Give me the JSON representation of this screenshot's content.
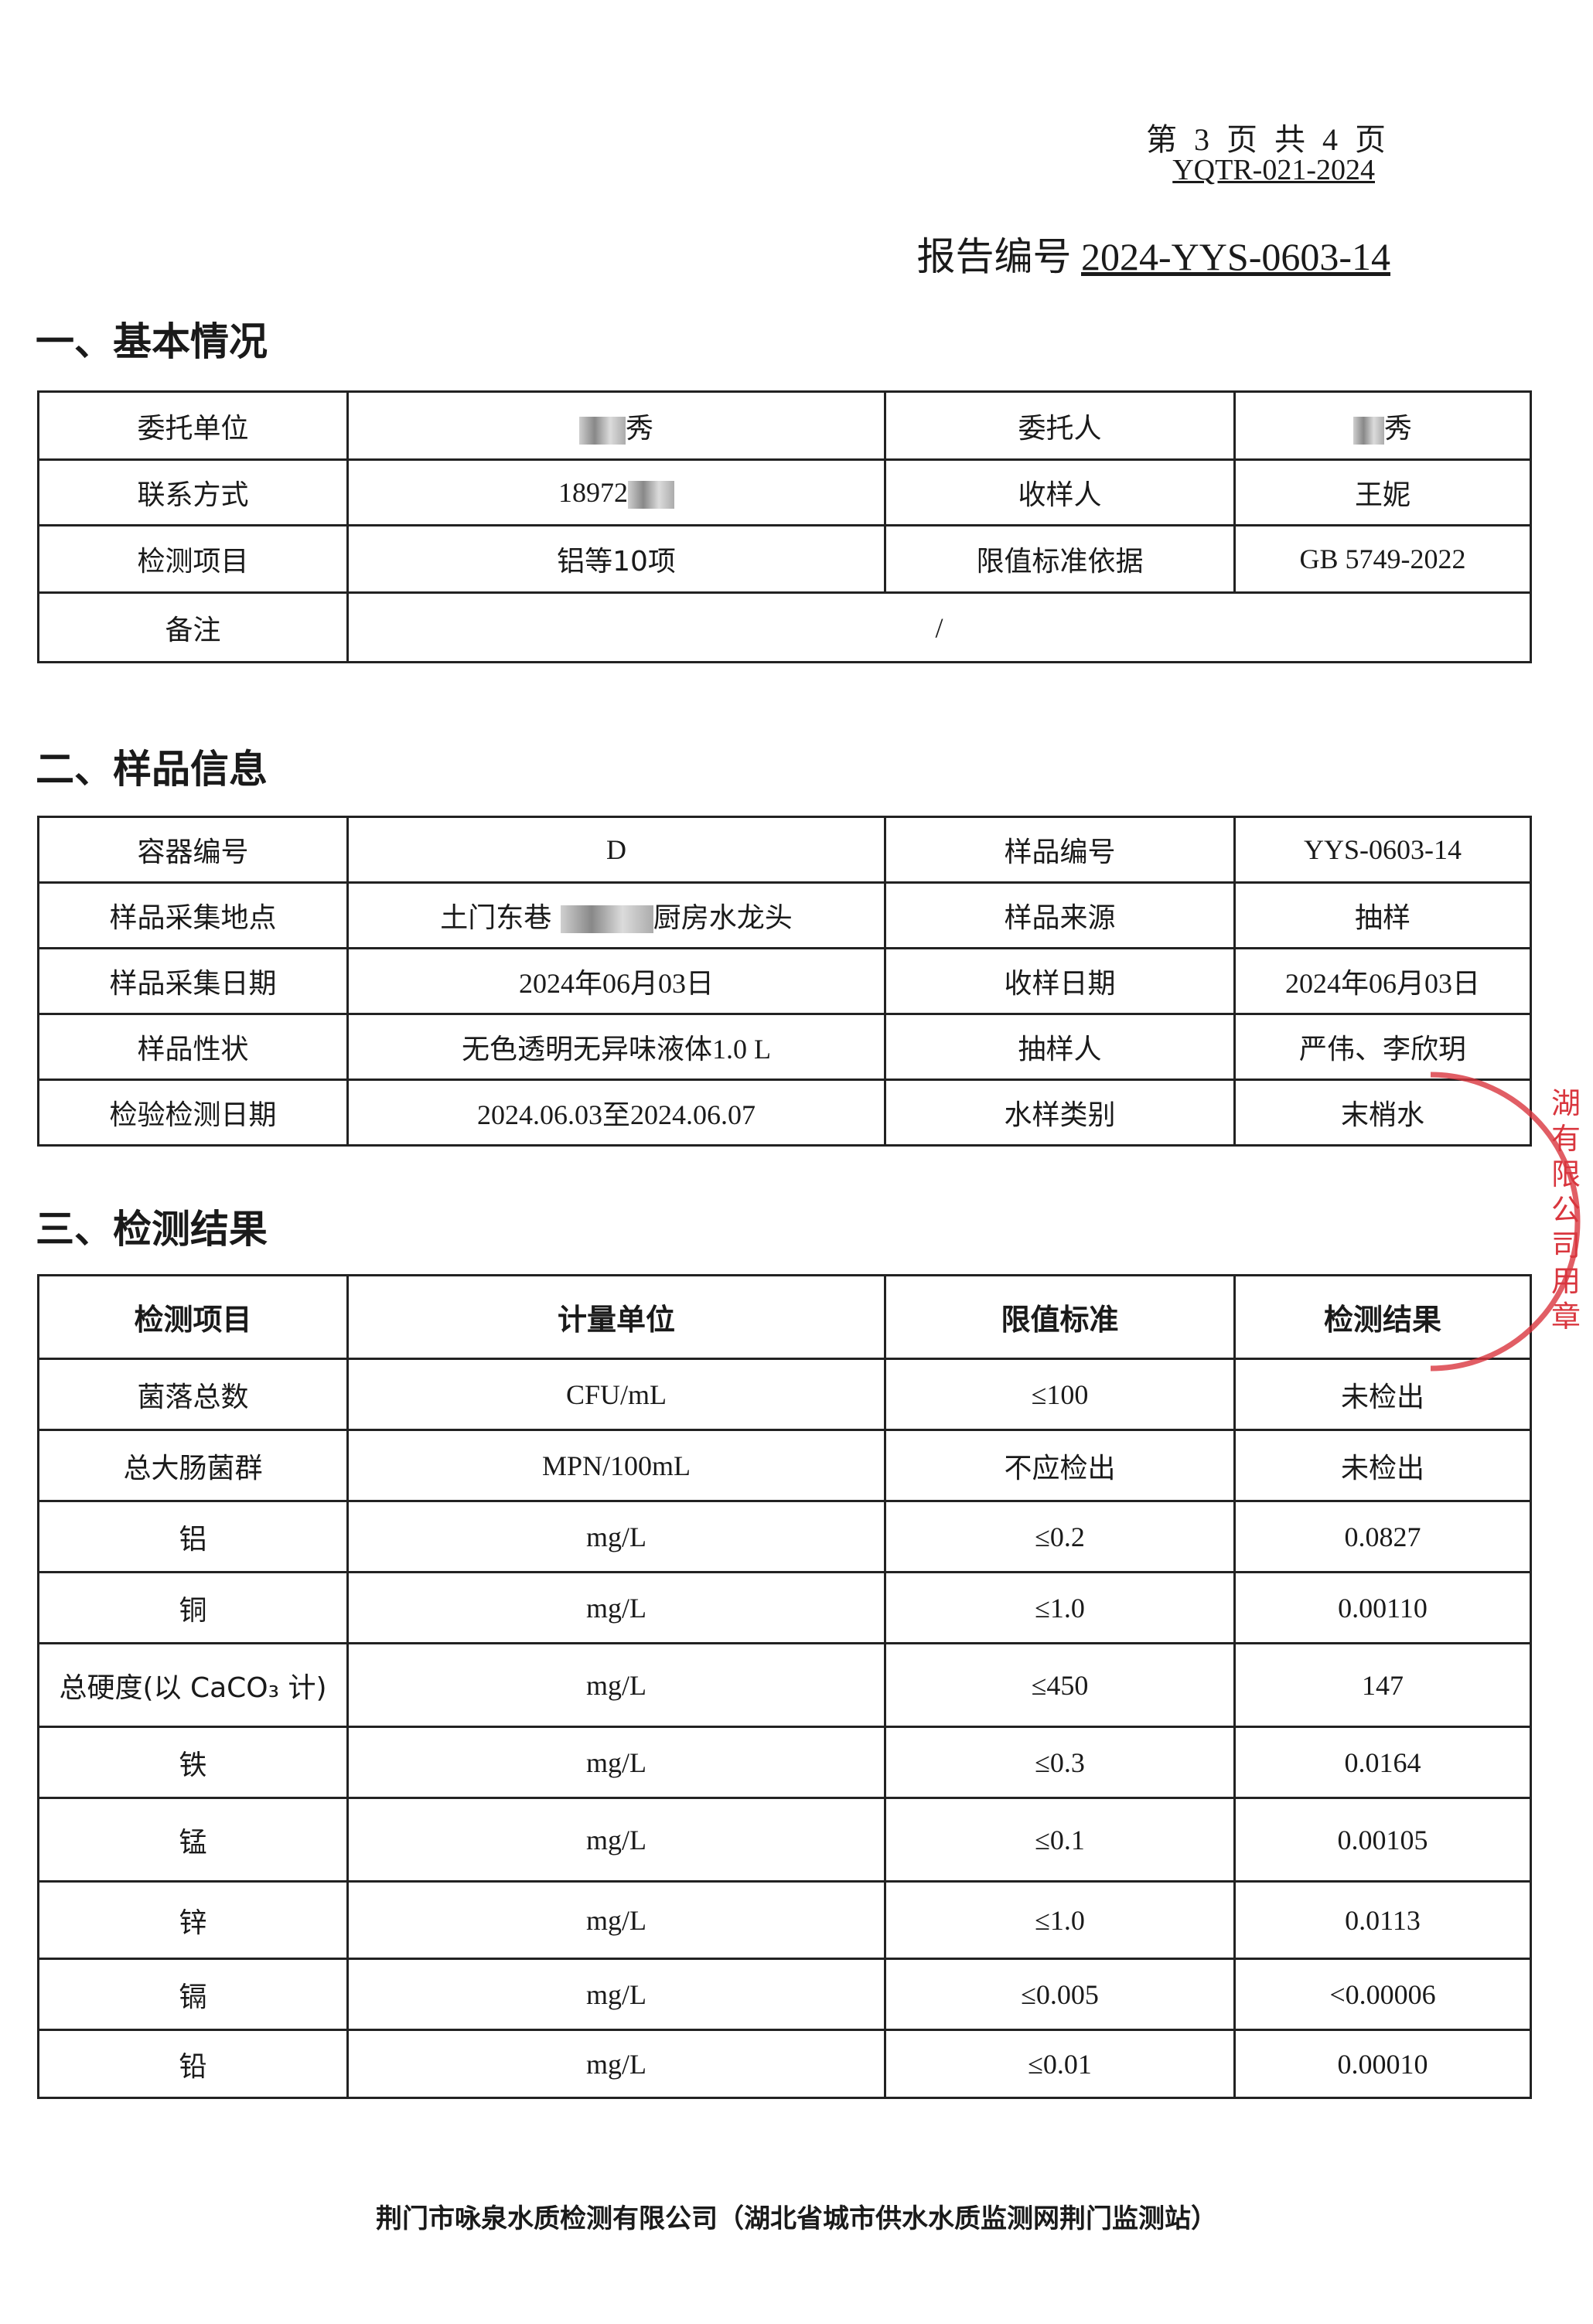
{
  "header": {
    "page_info": "第 3 页 共 4 页",
    "form_code": "YQTR-021-2024",
    "report_no_label": "报告编号",
    "report_no": "2024-YYS-0603-14"
  },
  "sections": {
    "basic": "一、基本情况",
    "sample": "二、样品信息",
    "results": "三、检测结果"
  },
  "basic_info": {
    "client_unit_label": "委托单位",
    "client_unit": "秀",
    "client_label": "委托人",
    "client": "秀",
    "contact_label": "联系方式",
    "contact": "18972",
    "receiver_label": "收样人",
    "receiver": "王妮",
    "items_label": "检测项目",
    "items": "铝等10项",
    "standard_label": "限值标准依据",
    "standard": "GB 5749-2022",
    "remark_label": "备注",
    "remark": "/"
  },
  "sample_info": {
    "container_label": "容器编号",
    "container": "D",
    "sample_no_label": "样品编号",
    "sample_no": "YYS-0603-14",
    "location_label": "样品采集地点",
    "location_prefix": "土门东巷",
    "location_suffix": "厨房水龙头",
    "source_label": "样品来源",
    "source": "抽样",
    "collect_date_label": "样品采集日期",
    "collect_date": "2024年06月03日",
    "receive_date_label": "收样日期",
    "receive_date": "2024年06月03日",
    "appearance_label": "样品性状",
    "appearance": "无色透明无异味液体1.0 L",
    "sampler_label": "抽样人",
    "sampler": "严伟、李欣玥",
    "test_date_label": "检验检测日期",
    "test_date": "2024.06.03至2024.06.07",
    "water_type_label": "水样类别",
    "water_type": "末梢水"
  },
  "results": {
    "headers": [
      "检测项目",
      "计量单位",
      "限值标准",
      "检测结果"
    ],
    "rows": [
      [
        "菌落总数",
        "CFU/mL",
        "≤100",
        "未检出"
      ],
      [
        "总大肠菌群",
        "MPN/100mL",
        "不应检出",
        "未检出"
      ],
      [
        "铝",
        "mg/L",
        "≤0.2",
        "0.0827"
      ],
      [
        "铜",
        "mg/L",
        "≤1.0",
        "0.00110"
      ],
      [
        "总硬度(以 CaCO₃ 计)",
        "mg/L",
        "≤450",
        "147"
      ],
      [
        "铁",
        "mg/L",
        "≤0.3",
        "0.0164"
      ],
      [
        "锰",
        "mg/L",
        "≤0.1",
        "0.00105"
      ],
      [
        "锌",
        "mg/L",
        "≤1.0",
        "0.0113"
      ],
      [
        "镉",
        "mg/L",
        "≤0.005",
        "<0.00006"
      ],
      [
        "铅",
        "mg/L",
        "≤0.01",
        "0.00010"
      ]
    ]
  },
  "footer": "荆门市咏泉水质检测有限公司（湖北省城市供水水质监测网荆门监测站）",
  "stamp": {
    "color": "#d9363e",
    "text": "湖有限公司 用章"
  }
}
